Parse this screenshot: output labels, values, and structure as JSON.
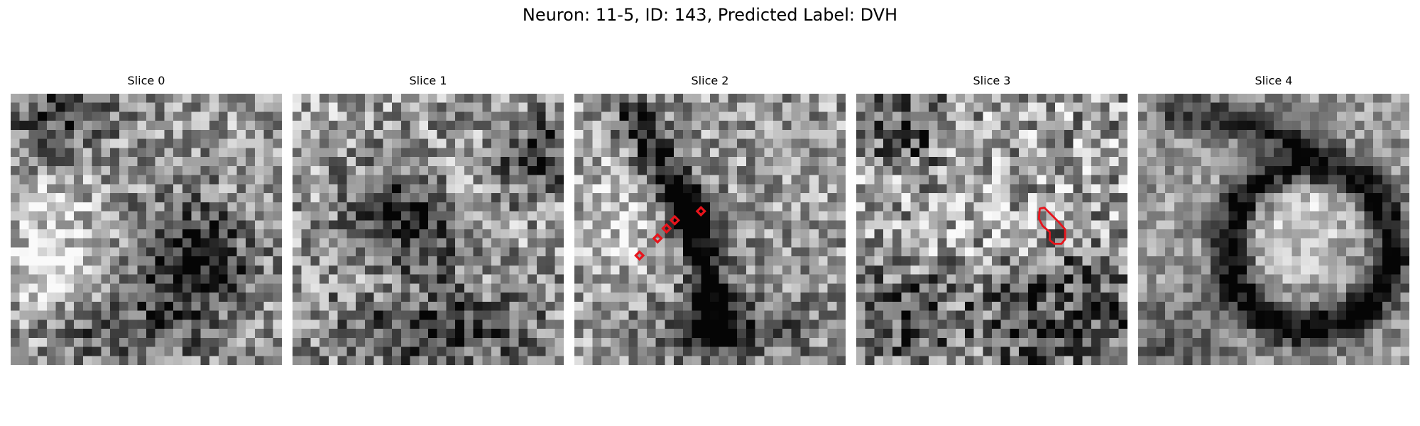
{
  "figure": {
    "title": "Neuron: 11-5, ID: 143, Predicted Label: DVH"
  },
  "slices": [
    {
      "title": "Slice 0"
    },
    {
      "title": "Slice 1"
    },
    {
      "title": "Slice 2"
    },
    {
      "title": "Slice 3"
    },
    {
      "title": "Slice 4"
    }
  ],
  "overlay": {
    "color": "#e8141c"
  }
}
